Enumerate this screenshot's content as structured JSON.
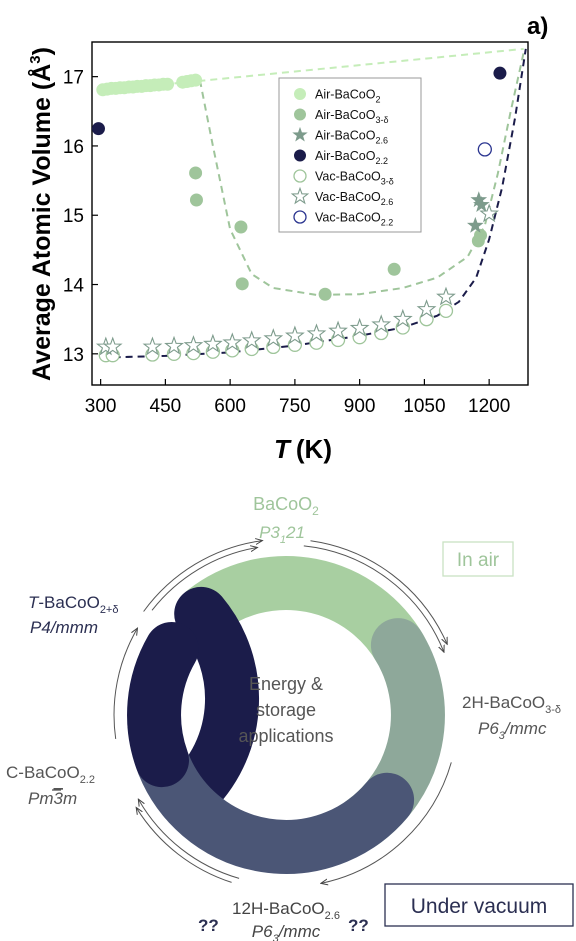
{
  "chart_data": {
    "type": "scatter",
    "panel_label": "a)",
    "xlabel_symbol": "T",
    "xlabel_unit": "(K)",
    "ylabel": "Average Atomic Volume (Å",
    "ylabel_sup": "3",
    "ylabel_close": ")",
    "xlim": [
      280,
      1290
    ],
    "ylim": [
      12.55,
      17.5
    ],
    "xticks": [
      300,
      450,
      600,
      750,
      900,
      1050,
      1200
    ],
    "yticks": [
      13,
      14,
      15,
      16,
      17
    ],
    "grid": false,
    "legend_position": "center",
    "series": [
      {
        "name": "Air-BaCoO",
        "sub": "2",
        "marker": "filled-circle",
        "color": "#c5edb9",
        "x": [
          305,
          315,
          325,
          335,
          345,
          355,
          365,
          375,
          385,
          395,
          405,
          415,
          425,
          435,
          445,
          455,
          490,
          500,
          510,
          520
        ],
        "y": [
          16.81,
          16.82,
          16.83,
          16.83,
          16.84,
          16.84,
          16.85,
          16.85,
          16.86,
          16.86,
          16.87,
          16.87,
          16.88,
          16.88,
          16.89,
          16.89,
          16.92,
          16.93,
          16.94,
          16.95
        ]
      },
      {
        "name": "Air-BaCoO",
        "sub": "3-δ",
        "marker": "filled-circle",
        "color": "#9fc59b",
        "x": [
          520,
          522,
          625,
          628,
          820,
          980,
          1175,
          1180
        ],
        "y": [
          15.61,
          15.22,
          14.83,
          14.01,
          13.86,
          14.22,
          14.63,
          14.71
        ]
      },
      {
        "name": "Air-BaCoO",
        "sub": "2.6",
        "marker": "filled-star",
        "color": "#7d9b8c",
        "x": [
          1168,
          1176,
          1182
        ],
        "y": [
          14.85,
          15.22,
          15.15
        ]
      },
      {
        "name": "Air-BaCoO",
        "sub": "2.2",
        "marker": "filled-circle",
        "color": "#1b1c4a",
        "x": [
          295,
          1225
        ],
        "y": [
          16.25,
          17.05
        ]
      },
      {
        "name": "Vac-BaCoO",
        "sub": "3-δ",
        "marker": "open-circle",
        "color": "#9fc59b",
        "x": [
          312,
          328,
          420,
          470,
          515,
          560,
          605,
          650,
          700,
          750,
          800,
          850,
          900,
          950,
          1000,
          1055,
          1100
        ],
        "y": [
          12.98,
          12.98,
          12.99,
          13.0,
          13.01,
          13.03,
          13.05,
          13.07,
          13.1,
          13.13,
          13.16,
          13.2,
          13.24,
          13.3,
          13.38,
          13.5,
          13.62
        ]
      },
      {
        "name": "Vac-BaCoO",
        "sub": "2.6",
        "marker": "open-star",
        "color": "#7d9b8c",
        "x": [
          312,
          328,
          420,
          470,
          515,
          560,
          605,
          650,
          700,
          750,
          800,
          850,
          900,
          950,
          1000,
          1055,
          1100,
          1200
        ],
        "y": [
          13.1,
          13.1,
          13.1,
          13.11,
          13.12,
          13.14,
          13.16,
          13.19,
          13.22,
          13.26,
          13.29,
          13.33,
          13.37,
          13.42,
          13.5,
          13.64,
          13.82,
          15.02
        ]
      },
      {
        "name": "Vac-BaCoO",
        "sub": "2.2",
        "marker": "open-circle",
        "color": "#2b3590",
        "x": [
          1190
        ],
        "y": [
          15.95
        ]
      }
    ],
    "guide_lines": [
      {
        "color": "#c5edb9",
        "x": [
          305,
          1280
        ],
        "y": [
          16.8,
          17.4
        ]
      },
      {
        "color": "#9fc59b",
        "x": [
          530,
          560,
          600,
          650,
          700,
          800,
          900,
          1000,
          1080,
          1150,
          1190,
          1220,
          1250,
          1280
        ],
        "y": [
          16.95,
          16.0,
          14.8,
          14.15,
          13.95,
          13.85,
          13.86,
          13.95,
          14.1,
          14.4,
          14.85,
          15.6,
          16.5,
          17.35
        ]
      },
      {
        "color": "#1b1c4a",
        "x": [
          330,
          450,
          600,
          750,
          900,
          1000,
          1080,
          1130,
          1170,
          1200,
          1230,
          1260,
          1285
        ],
        "y": [
          12.95,
          12.97,
          13.02,
          13.12,
          13.26,
          13.38,
          13.55,
          13.75,
          14.1,
          14.65,
          15.4,
          16.4,
          17.4
        ]
      }
    ]
  },
  "cycle": {
    "center_text": [
      "Energy &",
      "storage",
      "applications"
    ],
    "in_air_label": "In air",
    "under_vacuum_label": "Under vacuum",
    "top_phase": {
      "formula": "BaCoO",
      "sub": "2",
      "space_group": "P3",
      "sg_sub": "1",
      "sg_tail": "21"
    },
    "right_phase": {
      "formula": "2H-BaCoO",
      "sub": "3-δ",
      "space_group": "P6",
      "sg_sub": "3",
      "sg_tail": "/mmc"
    },
    "bottom_phase": {
      "formula": "12H-BaCoO",
      "sub": "2.6",
      "space_group": "P6",
      "sg_sub": "3",
      "sg_tail": "/mmc",
      "marks_left": "??",
      "marks_right": "??"
    },
    "left_phase": {
      "formula": "C-BaCoO",
      "sub": "2.2",
      "space_group_a": "Pm",
      "space_group_bar": "3",
      "space_group_b": "m"
    },
    "topleft_phase": {
      "italic_prefix": "T",
      "formula": "-BaCoO",
      "sub": "2+δ",
      "space_group": "P4/mmm"
    },
    "colors": {
      "top": "#a8cfa1",
      "right": "#8ea89a",
      "bottom": "#4b5676",
      "left": "#1b1c4a",
      "text_dark": "#2b2f52",
      "text_green": "#9fc59b",
      "text_grey": "#555555"
    }
  }
}
